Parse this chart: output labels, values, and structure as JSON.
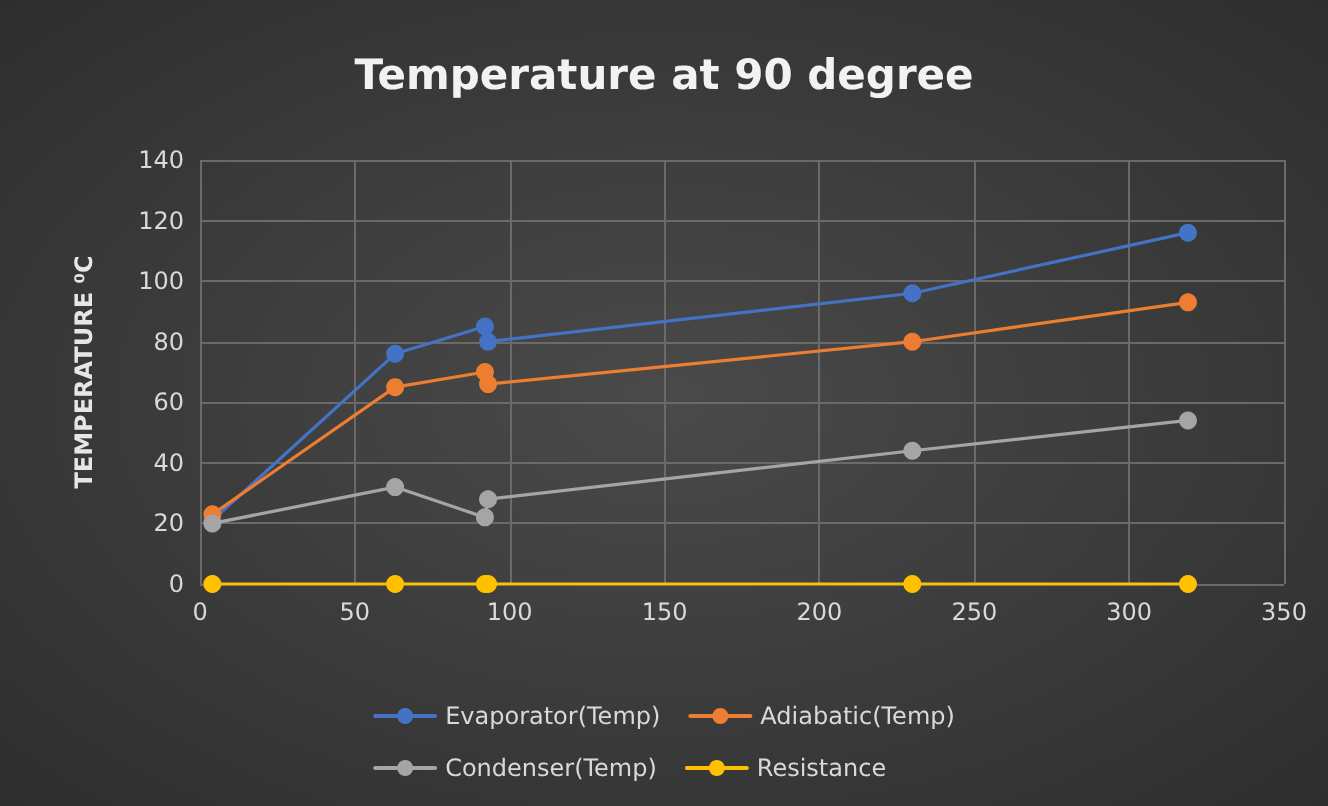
{
  "chart_data": {
    "type": "line",
    "title": "Temperature at 90 degree",
    "ylabel": "TEMPERATURE ⁰C",
    "x": [
      4,
      63,
      92,
      93,
      230,
      319
    ],
    "series": [
      {
        "name": "Evaporator(Temp)",
        "color": "#4472c4",
        "values": [
          21,
          76,
          85,
          80,
          96,
          116
        ]
      },
      {
        "name": "Adiabatic(Temp)",
        "color": "#ed7d31",
        "values": [
          23,
          65,
          70,
          66,
          80,
          93
        ]
      },
      {
        "name": "Condenser(Temp)",
        "color": "#a5a5a5",
        "values": [
          20,
          32,
          22,
          28,
          44,
          54
        ]
      },
      {
        "name": "Resistance",
        "color": "#ffc000",
        "values": [
          0,
          0,
          0,
          0,
          0,
          0
        ]
      }
    ],
    "xlim": [
      0,
      350
    ],
    "xticks": [
      0,
      50,
      100,
      150,
      200,
      250,
      300,
      350
    ],
    "ylim": [
      0,
      140
    ],
    "yticks": [
      0,
      20,
      40,
      60,
      80,
      100,
      120,
      140
    ],
    "grid": true,
    "legend": "bottom",
    "marker": "circle",
    "line_style": "solid"
  }
}
